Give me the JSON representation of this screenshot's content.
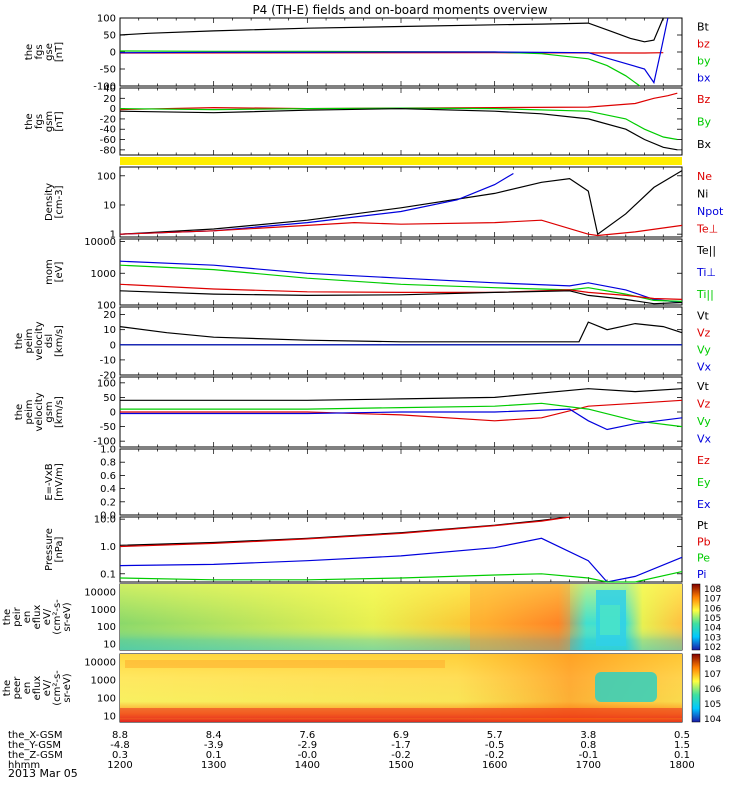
{
  "title": "P4 (TH-E) fields and on-board moments overview",
  "date": "2013 Mar 05",
  "colors": {
    "black": "#000000",
    "red": "#dd0000",
    "green": "#00cc00",
    "blue": "#0000dd",
    "yellow": "#ffee00"
  },
  "chart_data": [
    {
      "type": "line",
      "panel": "fgs_gse",
      "ylabel": [
        "the",
        "fgs",
        "gse",
        "[nT]"
      ],
      "yticks": [
        "100",
        "50",
        "0",
        "-50",
        "-100"
      ],
      "ylim": [
        -100,
        100
      ],
      "legend": [
        {
          "label": "Bt",
          "color": "#000000"
        },
        {
          "label": "bz",
          "color": "#dd0000"
        },
        {
          "label": "by",
          "color": "#00cc00"
        },
        {
          "label": "bx",
          "color": "#0000dd"
        }
      ],
      "series": [
        {
          "name": "Bt",
          "color": "#000000",
          "x": [
            1200,
            1230,
            1300,
            1400,
            1500,
            1600,
            1650,
            1700,
            1725,
            1745,
            1760,
            1770,
            1780
          ],
          "y": [
            50,
            55,
            62,
            70,
            75,
            80,
            82,
            85,
            60,
            40,
            30,
            35,
            100
          ]
        },
        {
          "name": "bz",
          "color": "#dd0000",
          "x": [
            1200,
            1600,
            1760,
            1780
          ],
          "y": [
            -3,
            -2,
            -3,
            -2
          ]
        },
        {
          "name": "by",
          "color": "#00cc00",
          "x": [
            1200,
            1300,
            1400,
            1500,
            1600,
            1650,
            1700,
            1720,
            1740,
            1755
          ],
          "y": [
            3,
            2,
            2,
            1,
            0,
            -5,
            -20,
            -40,
            -70,
            -100
          ]
        },
        {
          "name": "bx",
          "color": "#0000dd",
          "x": [
            1200,
            1300,
            1400,
            1500,
            1600,
            1700,
            1760,
            1770,
            1778,
            1785
          ],
          "y": [
            -2,
            -1,
            -1,
            0,
            0,
            -2,
            -50,
            -90,
            10,
            100
          ]
        }
      ]
    },
    {
      "type": "line",
      "panel": "fgs_gsm",
      "ylabel": [
        "the",
        "fgs",
        "gsm",
        "[nT]"
      ],
      "yticks": [
        "40",
        "20",
        "0",
        "-20",
        "-40",
        "-60",
        "-80"
      ],
      "ylim": [
        -90,
        40
      ],
      "legend": [
        {
          "label": "Bz",
          "color": "#dd0000"
        },
        {
          "label": "By",
          "color": "#00cc00"
        },
        {
          "label": "Bx",
          "color": "#000000"
        }
      ],
      "series": [
        {
          "name": "Bz",
          "color": "#dd0000",
          "x": [
            1200,
            1300,
            1400,
            1500,
            1600,
            1700,
            1750,
            1770,
            1785,
            1795
          ],
          "y": [
            -2,
            2,
            0,
            1,
            2,
            3,
            10,
            20,
            25,
            30
          ]
        },
        {
          "name": "By",
          "color": "#00cc00",
          "x": [
            1200,
            1300,
            1400,
            1500,
            1600,
            1700,
            1740,
            1760,
            1780,
            1795
          ],
          "y": [
            0,
            -2,
            0,
            1,
            0,
            -5,
            -20,
            -40,
            -55,
            -60
          ]
        },
        {
          "name": "Bx",
          "color": "#000000",
          "x": [
            1200,
            1300,
            1400,
            1500,
            1600,
            1650,
            1700,
            1740,
            1760,
            1780,
            1795
          ],
          "y": [
            -5,
            -8,
            -3,
            0,
            -5,
            -10,
            -20,
            -40,
            -60,
            -75,
            -80
          ]
        }
      ]
    },
    {
      "type": "line",
      "panel": "density",
      "yscale": "log",
      "ylabel": [
        "Density",
        "[cm-3]"
      ],
      "yticks": [
        "100",
        "10",
        "1"
      ],
      "ylim": [
        0.8,
        200
      ],
      "legend": [
        {
          "label": "Ne",
          "color": "#dd0000"
        },
        {
          "label": "Ni",
          "color": "#000000"
        },
        {
          "label": "Npot",
          "color": "#0000dd"
        },
        {
          "label": "Te⊥",
          "color": "#dd0000"
        }
      ],
      "series": [
        {
          "name": "Ni",
          "color": "#000000",
          "x": [
            1200,
            1300,
            1400,
            1500,
            1600,
            1650,
            1680,
            1700,
            1710,
            1740,
            1770,
            1800
          ],
          "y": [
            1.0,
            1.5,
            3,
            8,
            25,
            60,
            80,
            30,
            1.0,
            5,
            40,
            150
          ]
        },
        {
          "name": "Npot",
          "color": "#0000dd",
          "x": [
            1200,
            1300,
            1400,
            1500,
            1560,
            1600,
            1620
          ],
          "y": [
            1.0,
            1.3,
            2.5,
            6,
            15,
            50,
            120
          ]
        },
        {
          "name": "Ne",
          "color": "#dd0000",
          "x": [
            1200,
            1300,
            1400,
            1450,
            1500,
            1600,
            1650,
            1700,
            1710,
            1750,
            1800
          ],
          "y": [
            1.0,
            1.3,
            2,
            2.5,
            2.2,
            2.5,
            3,
            1.0,
            0.9,
            1.2,
            2
          ]
        }
      ]
    },
    {
      "type": "line",
      "panel": "temperature",
      "yscale": "log",
      "ylabel": [
        "mom",
        "[eV]"
      ],
      "yticks": [
        "10000",
        "1000",
        "100"
      ],
      "ylim": [
        100,
        12000
      ],
      "legend": [
        {
          "label": "Te||",
          "color": "#000000"
        },
        {
          "label": "Ti⊥",
          "color": "#0000dd"
        },
        {
          "label": "Ti||",
          "color": "#00cc00"
        }
      ],
      "series": [
        {
          "name": "Ti⊥",
          "color": "#0000dd",
          "x": [
            1200,
            1300,
            1400,
            1500,
            1600,
            1680,
            1700,
            1740,
            1770,
            1800
          ],
          "y": [
            2400,
            1800,
            1000,
            700,
            500,
            400,
            500,
            300,
            150,
            120
          ]
        },
        {
          "name": "Ti||",
          "color": "#00cc00",
          "x": [
            1200,
            1300,
            1400,
            1500,
            1600,
            1680,
            1700,
            1740,
            1770,
            1800
          ],
          "y": [
            1800,
            1300,
            700,
            450,
            350,
            300,
            350,
            220,
            140,
            130
          ]
        },
        {
          "name": "Te⊥",
          "color": "#dd0000",
          "x": [
            1200,
            1300,
            1400,
            1500,
            1600,
            1680,
            1700,
            1740,
            1770,
            1800
          ],
          "y": [
            450,
            320,
            260,
            250,
            250,
            300,
            250,
            200,
            160,
            150
          ]
        },
        {
          "name": "Te||",
          "color": "#000000",
          "x": [
            1200,
            1300,
            1400,
            1500,
            1600,
            1680,
            1700,
            1740,
            1770,
            1800
          ],
          "y": [
            280,
            220,
            200,
            210,
            250,
            280,
            200,
            150,
            110,
            120
          ]
        }
      ]
    },
    {
      "type": "line",
      "panel": "velocity_dsl",
      "ylabel": [
        "the",
        "peim",
        "velocity",
        "dsl",
        "[km/s]"
      ],
      "yticks": [
        "20",
        "10",
        "0",
        "-10",
        "-20"
      ],
      "ylim": [
        -20,
        25
      ],
      "legend": [
        {
          "label": "Vt",
          "color": "#000000"
        },
        {
          "label": "Vz",
          "color": "#dd0000"
        },
        {
          "label": "Vy",
          "color": "#00cc00"
        },
        {
          "label": "Vx",
          "color": "#0000dd"
        }
      ],
      "series": [
        {
          "name": "Vt",
          "color": "#000000",
          "x": [
            1200,
            1250,
            1300,
            1400,
            1500,
            1600,
            1690,
            1700,
            1720,
            1750,
            1780,
            1800
          ],
          "y": [
            12,
            8,
            5,
            3,
            2,
            2,
            2,
            15,
            10,
            14,
            12,
            8
          ]
        },
        {
          "name": "Vz",
          "color": "#dd0000",
          "x": [
            1200,
            1800
          ],
          "y": [
            0,
            0
          ]
        },
        {
          "name": "Vy",
          "color": "#00cc00",
          "x": [
            1200,
            1800
          ],
          "y": [
            0,
            0
          ]
        },
        {
          "name": "Vx",
          "color": "#0000dd",
          "x": [
            1200,
            1800
          ],
          "y": [
            0,
            0
          ]
        }
      ]
    },
    {
      "type": "line",
      "panel": "velocity_gsm",
      "ylabel": [
        "the",
        "peim",
        "velocity",
        "gsm",
        "[km/s]"
      ],
      "yticks": [
        "100",
        "50",
        "0",
        "-50",
        "-100"
      ],
      "ylim": [
        -120,
        120
      ],
      "legend": [
        {
          "label": "Vt",
          "color": "#000000"
        },
        {
          "label": "Vz",
          "color": "#dd0000"
        },
        {
          "label": "Vy",
          "color": "#00cc00"
        },
        {
          "label": "Vx",
          "color": "#0000dd"
        }
      ],
      "series": [
        {
          "name": "Vt",
          "color": "#000000",
          "x": [
            1200,
            1300,
            1400,
            1500,
            1600,
            1700,
            1750,
            1800
          ],
          "y": [
            40,
            40,
            40,
            45,
            50,
            80,
            70,
            80
          ]
        },
        {
          "name": "Vz",
          "color": "#dd0000",
          "x": [
            1200,
            1300,
            1400,
            1500,
            1600,
            1650,
            1700,
            1750,
            1800
          ],
          "y": [
            0,
            0,
            0,
            -10,
            -30,
            -20,
            20,
            30,
            40
          ]
        },
        {
          "name": "Vy",
          "color": "#00cc00",
          "x": [
            1200,
            1300,
            1400,
            1500,
            1600,
            1650,
            1700,
            1750,
            1800
          ],
          "y": [
            10,
            10,
            10,
            15,
            20,
            30,
            10,
            -30,
            -50
          ]
        },
        {
          "name": "Vx",
          "color": "#0000dd",
          "x": [
            1200,
            1300,
            1400,
            1500,
            1600,
            1680,
            1700,
            1720,
            1750,
            1800
          ],
          "y": [
            -5,
            -5,
            -5,
            0,
            0,
            10,
            -30,
            -60,
            -40,
            -20
          ]
        }
      ]
    },
    {
      "type": "line",
      "panel": "efield",
      "ylabel": [
        "E=-VxB",
        "[mV/m]"
      ],
      "yticks": [
        "1.0",
        "0.8",
        "0.6",
        "0.4",
        "0.2",
        "0.0"
      ],
      "ylim": [
        0,
        1
      ],
      "legend": [
        {
          "label": "Ez",
          "color": "#dd0000"
        },
        {
          "label": "Ey",
          "color": "#00cc00"
        },
        {
          "label": "Ex",
          "color": "#0000dd"
        }
      ],
      "series": []
    },
    {
      "type": "line",
      "panel": "pressure",
      "yscale": "log",
      "ylabel": [
        "Pressure",
        "[nPa]"
      ],
      "yticks": [
        "10.0",
        "1.0",
        "0.1"
      ],
      "ylim": [
        0.05,
        12
      ],
      "legend": [
        {
          "label": "Pt",
          "color": "#000000"
        },
        {
          "label": "Pb",
          "color": "#dd0000"
        },
        {
          "label": "Pe",
          "color": "#00cc00"
        },
        {
          "label": "Pi",
          "color": "#0000dd"
        }
      ],
      "series": [
        {
          "name": "Pt",
          "color": "#000000",
          "x": [
            1200,
            1300,
            1400,
            1500,
            1600,
            1650,
            1680
          ],
          "y": [
            1.1,
            1.4,
            2,
            3.2,
            6,
            9,
            12
          ]
        },
        {
          "name": "Pb",
          "color": "#dd0000",
          "x": [
            1200,
            1300,
            1400,
            1500,
            1600,
            1650,
            1680
          ],
          "y": [
            1.0,
            1.3,
            1.9,
            3,
            5.8,
            8.5,
            12
          ]
        },
        {
          "name": "Pi",
          "color": "#0000dd",
          "x": [
            1200,
            1300,
            1400,
            1500,
            1600,
            1650,
            1700,
            1720,
            1750,
            1800
          ],
          "y": [
            0.2,
            0.22,
            0.3,
            0.45,
            0.9,
            2,
            0.3,
            0.04,
            0.08,
            0.4
          ]
        },
        {
          "name": "Pe",
          "color": "#00cc00",
          "x": [
            1200,
            1300,
            1400,
            1500,
            1600,
            1650,
            1700,
            1720,
            1750,
            1800
          ],
          "y": [
            0.07,
            0.06,
            0.06,
            0.07,
            0.09,
            0.1,
            0.07,
            0.035,
            0.05,
            0.12
          ]
        }
      ]
    },
    {
      "type": "heatmap",
      "panel": "ion_spectrogram",
      "yscale": "log",
      "ylabel": [
        "the",
        "peir",
        "en",
        "eflux",
        "eV/",
        "(cm^2-s-",
        "sr-eV)"
      ],
      "yticks": [
        "10000",
        "1000",
        "100",
        "10"
      ],
      "colorbar": [
        "10^8",
        "10^7",
        "10^6",
        "10^5",
        "10^4",
        "10^3",
        "10^2"
      ]
    },
    {
      "type": "heatmap",
      "panel": "electron_spectrogram",
      "yscale": "log",
      "ylabel": [
        "the",
        "peer",
        "en",
        "eflux",
        "eV/",
        "(cm^2-s-",
        "sr-eV)"
      ],
      "yticks": [
        "10000",
        "1000",
        "100",
        "10"
      ],
      "colorbar": [
        "10^8",
        "10^7",
        "10^6",
        "10^5",
        "10^4"
      ]
    }
  ],
  "x_axis": {
    "range": [
      1200,
      1800
    ],
    "rows": [
      {
        "label": "the_X-GSM",
        "values": [
          "8.8",
          "8.4",
          "7.6",
          "6.9",
          "5.7",
          "3.8",
          "0.5"
        ]
      },
      {
        "label": "the_Y-GSM",
        "values": [
          "-4.8",
          "-3.9",
          "-2.9",
          "-1.7",
          "-0.5",
          "0.8",
          "1.5"
        ]
      },
      {
        "label": "the_Z-GSM",
        "values": [
          "0.3",
          "0.1",
          "-0.0",
          "-0.2",
          "-0.2",
          "-0.1",
          "0.1"
        ]
      },
      {
        "label": "hhmm",
        "values": [
          "1200",
          "1300",
          "1400",
          "1500",
          "1600",
          "1700",
          "1800"
        ]
      }
    ]
  }
}
